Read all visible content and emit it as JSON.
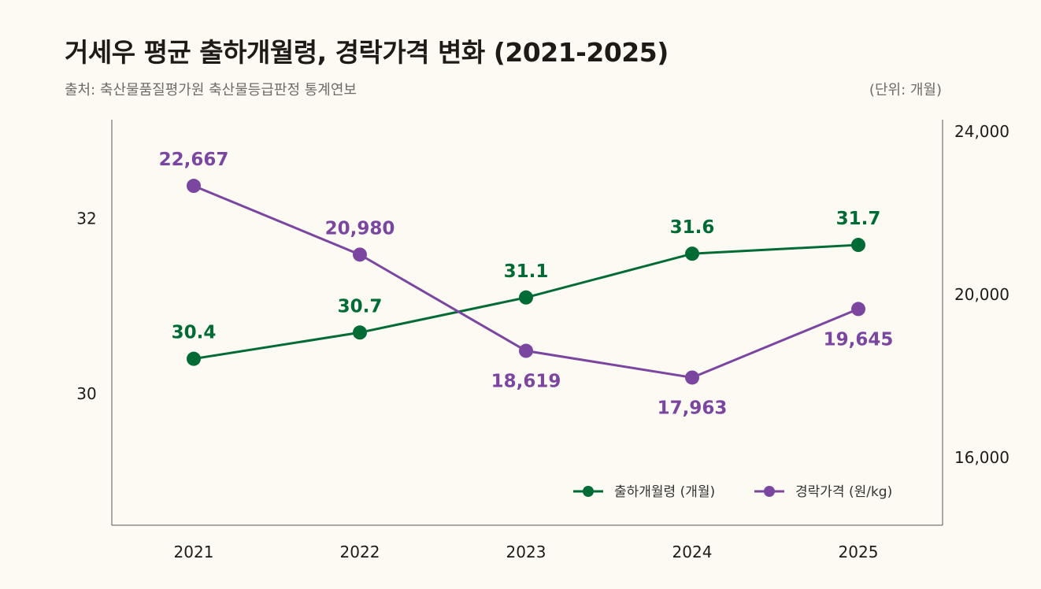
{
  "title": "거세우 평균 출하개월령, 경락가격 변화 (2021-2025)",
  "source": "출처: 축산물품질평가원 축산물등급판정 통계연보",
  "unit": "(단위: 개월)",
  "colors": {
    "age": "#006b35",
    "price": "#7a46a0",
    "axis": "#555555"
  },
  "chart_data": {
    "type": "line",
    "title": "거세우 평균 출하개월령, 경락가격 변화 (2021-2025)",
    "x": [
      "2021",
      "2022",
      "2023",
      "2024",
      "2025"
    ],
    "series": [
      {
        "name": "출하개월령 (개월)",
        "axis": "left",
        "values": [
          30.4,
          30.7,
          31.1,
          31.6,
          31.7
        ],
        "labels": [
          "30.4",
          "30.7",
          "31.1",
          "31.6",
          "31.7"
        ]
      },
      {
        "name": "경락가격 (원/kg)",
        "axis": "right",
        "values": [
          22667,
          20980,
          18619,
          17963,
          19645
        ],
        "labels": [
          "22,667",
          "20,980",
          "18,619",
          "17,963",
          "19,645"
        ]
      }
    ],
    "left_axis": {
      "ticks": [
        30,
        32
      ],
      "tick_labels": [
        "30",
        "32"
      ],
      "range": [
        28.5,
        33.13
      ]
    },
    "right_axis": {
      "ticks": [
        16000,
        20000,
        24000
      ],
      "tick_labels": [
        "16,000",
        "20,000",
        "24,000"
      ],
      "range": [
        14340,
        24290
      ]
    },
    "grid": false,
    "legend": "bottom-right"
  }
}
